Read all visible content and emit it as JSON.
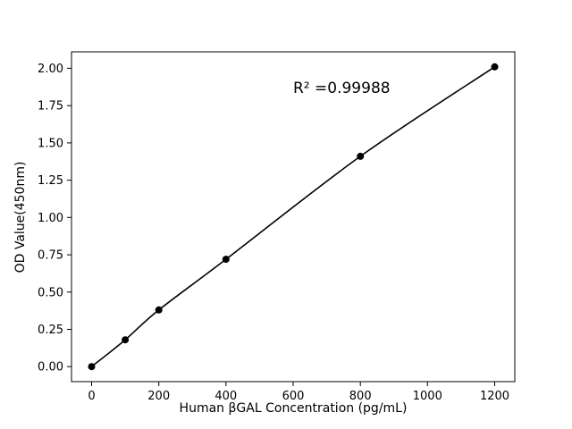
{
  "chart_data": {
    "type": "line",
    "title": "",
    "xlabel": "Human βGAL Concentration (pg/mL)",
    "ylabel": "OD Value(450nm)",
    "x": [
      0,
      100,
      200,
      400,
      800,
      1200
    ],
    "y": [
      0.0,
      0.18,
      0.38,
      0.72,
      1.41,
      2.01
    ],
    "xlim": [
      -60,
      1260
    ],
    "ylim": [
      -0.1005,
      2.1105
    ],
    "xticks": [
      0,
      200,
      400,
      600,
      800,
      1000,
      1200
    ],
    "yticks": [
      0.0,
      0.25,
      0.5,
      0.75,
      1.0,
      1.25,
      1.5,
      1.75,
      2.0
    ],
    "annotation": "R² =0.99988",
    "line_color": "#000000",
    "marker_color": "#000000",
    "frame_color": "#000000",
    "grid": false,
    "legend": null,
    "marker": "circle"
  }
}
